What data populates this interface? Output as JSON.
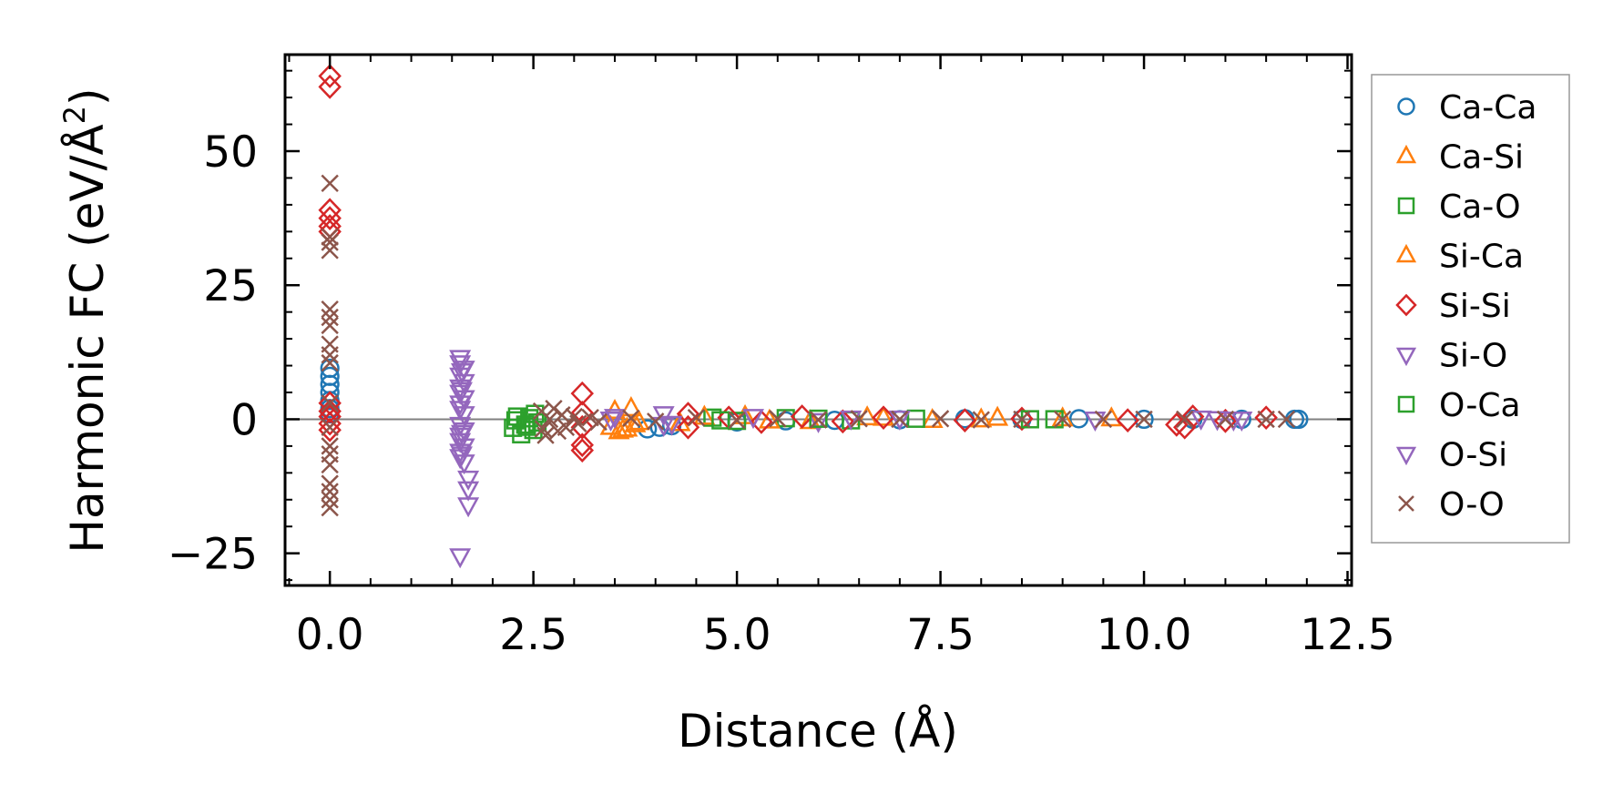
{
  "chart_data": {
    "type": "scatter",
    "title": "",
    "xlabel": "Distance (Å)",
    "ylabel_main": "Harmonic FC (eV/Å",
    "ylabel_sup": "2",
    "ylabel_close": ")",
    "xlim": [
      -0.55,
      12.55
    ],
    "ylim": [
      -31,
      68
    ],
    "xticks": [
      0.0,
      2.5,
      5.0,
      7.5,
      10.0,
      12.5
    ],
    "xtick_labels": [
      "0.0",
      "2.5",
      "5.0",
      "7.5",
      "10.0",
      "12.5"
    ],
    "yticks": [
      -25,
      0,
      25,
      50
    ],
    "ytick_labels": [
      "−25",
      "0",
      "25",
      "50"
    ],
    "zero_line": 0,
    "legend_position": "outside-right",
    "series": [
      {
        "name": "Ca-Ca",
        "marker": "circle",
        "color": "#1f77b4",
        "points": [
          [
            0.0,
            9.5
          ],
          [
            0.0,
            8.0
          ],
          [
            0.0,
            6.5
          ],
          [
            0.0,
            5.0
          ],
          [
            0.0,
            3.5
          ],
          [
            0.0,
            2.0
          ],
          [
            0.0,
            1.0
          ],
          [
            3.9,
            -1.8
          ],
          [
            4.05,
            -1.5
          ],
          [
            4.2,
            -1.2
          ],
          [
            5.0,
            -0.5
          ],
          [
            5.6,
            -0.3
          ],
          [
            6.2,
            -0.2
          ],
          [
            7.0,
            -0.1
          ],
          [
            7.8,
            0.1
          ],
          [
            8.5,
            0.0
          ],
          [
            9.2,
            0.1
          ],
          [
            10.0,
            0.0
          ],
          [
            10.6,
            0.0
          ],
          [
            11.2,
            0.0
          ],
          [
            11.85,
            0.0
          ],
          [
            11.9,
            0.0
          ]
        ]
      },
      {
        "name": "Ca-Si",
        "marker": "triangle-up",
        "color": "#ff7f0e",
        "points": [
          [
            3.45,
            -1.5
          ],
          [
            3.55,
            -2.3
          ],
          [
            3.65,
            -1.8
          ],
          [
            3.7,
            2.0
          ],
          [
            3.75,
            -1.0
          ],
          [
            4.3,
            -0.8
          ],
          [
            5.1,
            0.5
          ],
          [
            5.9,
            -0.4
          ],
          [
            6.6,
            0.3
          ],
          [
            7.4,
            -0.2
          ],
          [
            8.2,
            0.2
          ],
          [
            9.0,
            0.1
          ]
        ]
      },
      {
        "name": "Ca-O",
        "marker": "square",
        "color": "#2ca02c",
        "points": [
          [
            2.25,
            -1.6
          ],
          [
            2.3,
            0.5
          ],
          [
            2.35,
            -2.8
          ],
          [
            2.4,
            -1.0
          ],
          [
            2.45,
            0.2
          ],
          [
            2.5,
            -2.0
          ],
          [
            2.55,
            -0.6
          ],
          [
            4.7,
            0.3
          ],
          [
            5.0,
            -0.3
          ],
          [
            5.6,
            0.2
          ],
          [
            6.4,
            -0.2
          ],
          [
            7.2,
            0.1
          ],
          [
            8.9,
            0.0
          ]
        ]
      },
      {
        "name": "Si-Ca",
        "marker": "triangle-up",
        "color": "#ff7f0e",
        "points": [
          [
            3.5,
            1.5
          ],
          [
            3.6,
            -2.0
          ],
          [
            3.8,
            -0.6
          ],
          [
            4.6,
            0.4
          ],
          [
            5.4,
            -0.3
          ],
          [
            6.8,
            0.2
          ],
          [
            8.0,
            -0.1
          ],
          [
            9.6,
            0.1
          ]
        ]
      },
      {
        "name": "Si-Si",
        "marker": "diamond",
        "color": "#d62728",
        "points": [
          [
            0.0,
            64.0
          ],
          [
            0.0,
            62.0
          ],
          [
            0.0,
            39.0
          ],
          [
            0.0,
            37.5
          ],
          [
            0.0,
            36.0
          ],
          [
            0.0,
            35.0
          ],
          [
            0.0,
            3.0
          ],
          [
            0.0,
            1.5
          ],
          [
            0.0,
            0.5
          ],
          [
            0.0,
            -0.8
          ],
          [
            0.0,
            -2.0
          ],
          [
            3.1,
            4.8
          ],
          [
            3.1,
            -4.8
          ],
          [
            3.1,
            -5.8
          ],
          [
            3.1,
            1.2
          ],
          [
            3.1,
            -1.5
          ],
          [
            4.4,
            1.0
          ],
          [
            4.4,
            -1.5
          ],
          [
            4.9,
            0.3
          ],
          [
            5.3,
            -0.5
          ],
          [
            5.8,
            0.5
          ],
          [
            6.3,
            -0.4
          ],
          [
            6.8,
            0.3
          ],
          [
            7.8,
            -0.2
          ],
          [
            8.5,
            0.1
          ],
          [
            9.8,
            -0.2
          ],
          [
            10.4,
            -1.0
          ],
          [
            10.5,
            -1.5
          ],
          [
            10.6,
            0.5
          ],
          [
            11.0,
            -0.3
          ],
          [
            11.5,
            0.3
          ]
        ]
      },
      {
        "name": "Si-O",
        "marker": "triangle-down",
        "color": "#9467bd",
        "points": [
          [
            1.6,
            11.5
          ],
          [
            1.6,
            10.5
          ],
          [
            1.65,
            9.5
          ],
          [
            1.6,
            8.2
          ],
          [
            1.65,
            7.0
          ],
          [
            1.6,
            6.0
          ],
          [
            1.6,
            5.0
          ],
          [
            1.65,
            4.0
          ],
          [
            1.6,
            3.0
          ],
          [
            1.6,
            2.0
          ],
          [
            1.65,
            1.0
          ],
          [
            1.6,
            -1.0
          ],
          [
            1.65,
            -2.0
          ],
          [
            1.6,
            -3.0
          ],
          [
            1.6,
            -4.0
          ],
          [
            1.65,
            -5.0
          ],
          [
            1.6,
            -6.0
          ],
          [
            1.6,
            -7.0
          ],
          [
            1.65,
            -8.0
          ],
          [
            1.7,
            -11.0
          ],
          [
            1.7,
            -13.0
          ],
          [
            1.7,
            -16.0
          ],
          [
            1.6,
            -25.5
          ],
          [
            3.45,
            0.0
          ],
          [
            4.1,
            1.0
          ],
          [
            4.1,
            -1.0
          ],
          [
            5.2,
            0.5
          ],
          [
            6.0,
            -0.3
          ],
          [
            7.0,
            0.2
          ],
          [
            9.4,
            0.0
          ],
          [
            10.7,
            0.2
          ],
          [
            10.9,
            0.1
          ],
          [
            11.1,
            0.0
          ]
        ]
      },
      {
        "name": "O-Ca",
        "marker": "square",
        "color": "#2ca02c",
        "points": [
          [
            2.28,
            -0.2
          ],
          [
            2.42,
            -1.4
          ],
          [
            2.52,
            1.0
          ],
          [
            4.8,
            -0.2
          ],
          [
            6.0,
            0.1
          ],
          [
            8.6,
            0.0
          ]
        ]
      },
      {
        "name": "O-Si",
        "marker": "triangle-down",
        "color": "#9467bd",
        "points": [
          [
            1.62,
            9.0
          ],
          [
            1.62,
            5.5
          ],
          [
            1.62,
            -2.5
          ],
          [
            1.62,
            -6.5
          ],
          [
            3.5,
            0.5
          ],
          [
            4.2,
            -0.8
          ],
          [
            6.4,
            0.2
          ],
          [
            11.2,
            0.0
          ]
        ]
      },
      {
        "name": "O-O",
        "marker": "x",
        "color": "#8c564b",
        "points": [
          [
            0.0,
            44.0
          ],
          [
            0.0,
            34.0
          ],
          [
            0.0,
            33.0
          ],
          [
            0.0,
            31.5
          ],
          [
            0.0,
            20.5
          ],
          [
            0.0,
            19.0
          ],
          [
            0.0,
            17.5
          ],
          [
            0.0,
            14.0
          ],
          [
            0.0,
            12.0
          ],
          [
            0.0,
            10.5
          ],
          [
            0.0,
            3.0
          ],
          [
            0.0,
            -1.5
          ],
          [
            0.0,
            -5.0
          ],
          [
            0.0,
            -6.5
          ],
          [
            0.0,
            -8.5
          ],
          [
            0.0,
            -12.0
          ],
          [
            0.0,
            -13.5
          ],
          [
            0.0,
            -15.0
          ],
          [
            0.0,
            -16.5
          ],
          [
            2.6,
            1.5
          ],
          [
            2.62,
            -1.8
          ],
          [
            2.65,
            -3.0
          ],
          [
            2.7,
            0.0
          ],
          [
            2.75,
            2.0
          ],
          [
            2.8,
            -2.2
          ],
          [
            2.85,
            0.8
          ],
          [
            2.9,
            -1.5
          ],
          [
            3.0,
            0.5
          ],
          [
            3.05,
            -0.8
          ],
          [
            3.2,
            0.3
          ],
          [
            3.3,
            -0.5
          ],
          [
            3.7,
            0.2
          ],
          [
            4.0,
            -0.4
          ],
          [
            4.5,
            0.3
          ],
          [
            5.0,
            -0.2
          ],
          [
            5.5,
            0.1
          ],
          [
            6.0,
            -0.1
          ],
          [
            6.5,
            0.1
          ],
          [
            7.0,
            0.0
          ],
          [
            7.5,
            0.1
          ],
          [
            8.0,
            -0.1
          ],
          [
            8.5,
            0.0
          ],
          [
            9.0,
            0.0
          ],
          [
            9.5,
            0.0
          ],
          [
            10.0,
            0.0
          ],
          [
            10.5,
            0.0
          ],
          [
            11.0,
            0.0
          ],
          [
            11.5,
            0.0
          ],
          [
            11.75,
            0.0
          ]
        ]
      }
    ]
  }
}
